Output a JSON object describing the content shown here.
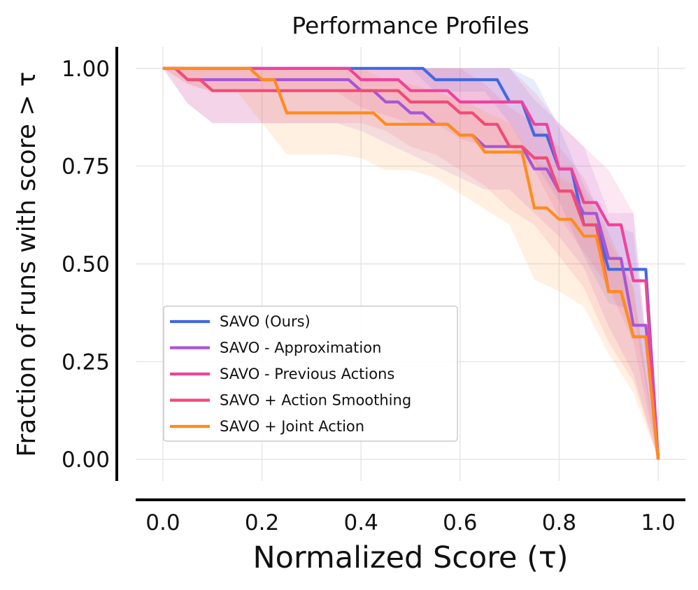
{
  "chart_data": {
    "type": "line",
    "title": "Performance Profiles",
    "xlabel": "Normalized Score (τ)",
    "ylabel": "Fraction of runs with score > τ",
    "xlim": [
      -0.055,
      1.055
    ],
    "ylim": [
      -0.055,
      1.055
    ],
    "xticks": [
      0.0,
      0.2,
      0.4,
      0.6,
      0.8,
      1.0
    ],
    "xtick_labels": [
      "0.0",
      "0.2",
      "0.4",
      "0.6",
      "0.8",
      "1.0"
    ],
    "yticks": [
      0.0,
      0.25,
      0.5,
      0.75,
      1.0
    ],
    "ytick_labels": [
      "0.00",
      "0.25",
      "0.50",
      "0.75",
      "1.00"
    ],
    "grid": true,
    "legend_position": "lower-left",
    "x": [
      0.0,
      0.05,
      0.1,
      0.15,
      0.2,
      0.25,
      0.3,
      0.35,
      0.4,
      0.45,
      0.5,
      0.55,
      0.6,
      0.65,
      0.7,
      0.75,
      0.8,
      0.85,
      0.9,
      0.95,
      1.0
    ],
    "series": [
      {
        "name": "SAVO (Ours)",
        "color": "#4169e1",
        "values": [
          1.0,
          1.0,
          1.0,
          1.0,
          1.0,
          1.0,
          1.0,
          1.0,
          1.0,
          1.0,
          1.0,
          0.971,
          0.971,
          0.971,
          0.914,
          0.829,
          0.743,
          0.6,
          0.486,
          0.486,
          0.0
        ],
        "lower": [
          1.0,
          1.0,
          1.0,
          1.0,
          1.0,
          1.0,
          1.0,
          1.0,
          1.0,
          1.0,
          1.0,
          0.94,
          0.94,
          0.94,
          0.86,
          0.76,
          0.66,
          0.52,
          0.4,
          0.38,
          0.0
        ],
        "upper": [
          1.0,
          1.0,
          1.0,
          1.0,
          1.0,
          1.0,
          1.0,
          1.0,
          1.0,
          1.0,
          1.0,
          1.0,
          1.0,
          1.0,
          1.0,
          0.97,
          0.85,
          0.7,
          0.6,
          0.58,
          0.0
        ]
      },
      {
        "name": "SAVO - Approximation",
        "color": "#a855d8",
        "values": [
          1.0,
          0.971,
          0.971,
          0.971,
          0.971,
          0.971,
          0.971,
          0.971,
          0.943,
          0.914,
          0.886,
          0.857,
          0.829,
          0.8,
          0.8,
          0.743,
          0.686,
          0.629,
          0.514,
          0.343,
          0.0
        ],
        "lower": [
          1.0,
          0.91,
          0.86,
          0.86,
          0.86,
          0.86,
          0.86,
          0.86,
          0.84,
          0.81,
          0.78,
          0.75,
          0.72,
          0.69,
          0.69,
          0.63,
          0.57,
          0.49,
          0.34,
          0.22,
          0.0
        ],
        "upper": [
          1.0,
          1.0,
          1.0,
          1.0,
          1.0,
          1.0,
          1.0,
          1.0,
          1.0,
          1.0,
          1.0,
          1.0,
          1.0,
          1.0,
          1.0,
          0.92,
          0.86,
          0.8,
          0.63,
          0.63,
          0.0
        ]
      },
      {
        "name": "SAVO - Previous Actions",
        "color": "#f0429c",
        "values": [
          1.0,
          1.0,
          1.0,
          1.0,
          1.0,
          1.0,
          1.0,
          1.0,
          0.971,
          0.971,
          0.943,
          0.943,
          0.914,
          0.914,
          0.914,
          0.857,
          0.743,
          0.657,
          0.6,
          0.457,
          0.0
        ],
        "lower": [
          1.0,
          0.96,
          0.94,
          0.94,
          0.94,
          0.94,
          0.94,
          0.94,
          0.9,
          0.88,
          0.86,
          0.86,
          0.82,
          0.8,
          0.8,
          0.74,
          0.62,
          0.53,
          0.44,
          0.3,
          0.0
        ],
        "upper": [
          1.0,
          1.0,
          1.0,
          1.0,
          1.0,
          1.0,
          1.0,
          1.0,
          1.0,
          1.0,
          1.0,
          1.0,
          1.0,
          1.0,
          1.0,
          0.94,
          0.86,
          0.8,
          0.74,
          0.63,
          0.0
        ]
      },
      {
        "name": "SAVO + Action Smoothing",
        "color": "#f24b76",
        "values": [
          1.0,
          0.971,
          0.943,
          0.943,
          0.943,
          0.943,
          0.943,
          0.943,
          0.943,
          0.943,
          0.914,
          0.914,
          0.886,
          0.857,
          0.8,
          0.771,
          0.686,
          0.6,
          0.429,
          0.314,
          0.0
        ],
        "lower": [
          1.0,
          0.91,
          0.86,
          0.86,
          0.86,
          0.86,
          0.86,
          0.86,
          0.86,
          0.84,
          0.8,
          0.78,
          0.74,
          0.7,
          0.64,
          0.6,
          0.52,
          0.44,
          0.3,
          0.2,
          0.0
        ],
        "upper": [
          1.0,
          1.0,
          1.0,
          1.0,
          1.0,
          1.0,
          1.0,
          1.0,
          1.0,
          1.0,
          1.0,
          1.0,
          1.0,
          0.96,
          0.9,
          0.86,
          0.8,
          0.72,
          0.58,
          0.44,
          0.0
        ]
      },
      {
        "name": "SAVO + Joint Action",
        "color": "#ff8c1a",
        "values": [
          1.0,
          1.0,
          1.0,
          1.0,
          0.971,
          0.886,
          0.886,
          0.886,
          0.886,
          0.857,
          0.857,
          0.857,
          0.829,
          0.786,
          0.786,
          0.643,
          0.614,
          0.571,
          0.429,
          0.314,
          0.0
        ],
        "lower": [
          1.0,
          0.96,
          0.94,
          0.94,
          0.86,
          0.78,
          0.78,
          0.78,
          0.77,
          0.74,
          0.74,
          0.72,
          0.68,
          0.64,
          0.6,
          0.46,
          0.43,
          0.39,
          0.27,
          0.17,
          0.0
        ],
        "upper": [
          1.0,
          1.0,
          1.0,
          1.0,
          1.0,
          1.0,
          1.0,
          1.0,
          1.0,
          0.97,
          0.96,
          0.94,
          0.92,
          0.89,
          0.86,
          0.77,
          0.72,
          0.69,
          0.56,
          0.44,
          0.0
        ]
      }
    ]
  }
}
